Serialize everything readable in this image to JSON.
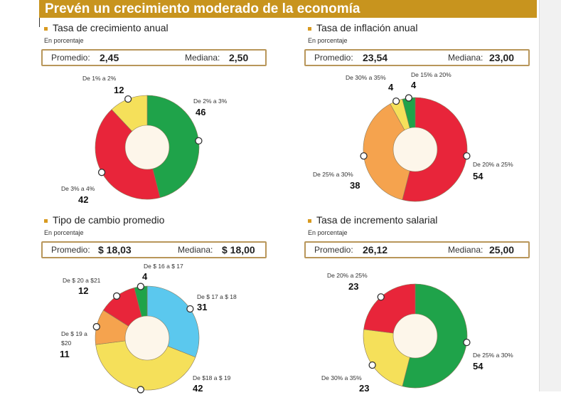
{
  "title": "Prevén un crecimiento moderado de la economía",
  "colors": {
    "green": "#1fa34a",
    "red": "#e8253a",
    "yellow": "#f5e05a",
    "orange": "#f5a34e",
    "blue": "#5bc8ee",
    "hole": "#fdf6ea",
    "header": "#c8941e"
  },
  "chart_data": [
    {
      "type": "pie",
      "title": "Tasa de crecimiento anual",
      "subtitle": "En porcentaje",
      "promedio_label": "Promedio:",
      "promedio": "2,45",
      "mediana_label": "Mediana:",
      "mediana": "2,50",
      "slices": [
        {
          "label": "De 2% a 3%",
          "value": 46,
          "color": "#1fa34a"
        },
        {
          "label": "De 3% a 4%",
          "value": 42,
          "color": "#e8253a"
        },
        {
          "label": "De 1% a 2%",
          "value": 12,
          "color": "#f5e05a"
        }
      ]
    },
    {
      "type": "pie",
      "title": "Tasa de inflación anual",
      "subtitle": "En porcentaje",
      "promedio_label": "Promedio:",
      "promedio": "23,54",
      "mediana_label": "Mediana:",
      "mediana": "23,00",
      "slices": [
        {
          "label": "De 20% a 25%",
          "value": 54,
          "color": "#e8253a"
        },
        {
          "label": "De 25% a 30%",
          "value": 38,
          "color": "#f5a34e"
        },
        {
          "label": "De 30% a 35%",
          "value": 4,
          "color": "#f5e05a"
        },
        {
          "label": "De 15% a 20%",
          "value": 4,
          "color": "#1fa34a"
        }
      ]
    },
    {
      "type": "pie",
      "title": "Tipo de cambio promedio",
      "subtitle": "En porcentaje",
      "promedio_label": "Promedio:",
      "promedio": "$ 18,03",
      "mediana_label": "Mediana:",
      "mediana": "$ 18,00",
      "slices": [
        {
          "label": "De $ 17 a $ 18",
          "value": 31,
          "color": "#5bc8ee"
        },
        {
          "label": "De $18 a $ 19",
          "value": 42,
          "color": "#f5e05a"
        },
        {
          "label": "De $ 19 a $20",
          "value": 11,
          "color": "#f5a34e"
        },
        {
          "label": "De $ 20 a $21",
          "value": 12,
          "color": "#e8253a"
        },
        {
          "label": "De $ 16 a $ 17",
          "value": 4,
          "color": "#1fa34a"
        }
      ]
    },
    {
      "type": "pie",
      "title": "Tasa de incremento salarial",
      "subtitle": "En porcentaje",
      "promedio_label": "Promedio:",
      "promedio": "26,12",
      "mediana_label": "Mediana:",
      "mediana": "25,00",
      "slices": [
        {
          "label": "De 25% a 30%",
          "value": 54,
          "color": "#1fa34a"
        },
        {
          "label": "De 30% a 35%",
          "value": 23,
          "color": "#f5e05a"
        },
        {
          "label": "De 20% a 25%",
          "value": 23,
          "color": "#e8253a"
        }
      ]
    }
  ]
}
